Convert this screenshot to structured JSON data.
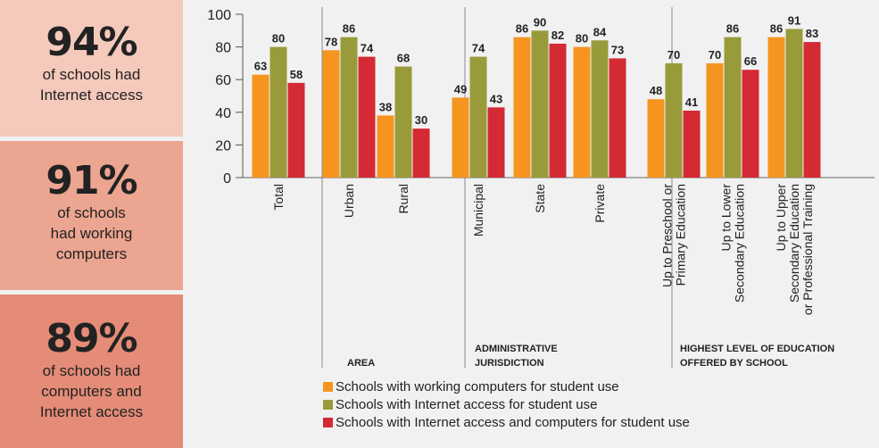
{
  "stats": [
    {
      "value": "94%",
      "lines": [
        "of schools had",
        "Internet access"
      ]
    },
    {
      "value": "91%",
      "lines": [
        "of schools",
        "had working",
        "computers"
      ]
    },
    {
      "value": "89%",
      "lines": [
        "of schools had",
        "computers and",
        "Internet access"
      ]
    }
  ],
  "colors": {
    "working_computers": "#f5951f",
    "internet_access": "#999b3a",
    "both": "#d42a34"
  },
  "chart_data": {
    "type": "bar",
    "ylim": [
      0,
      100
    ],
    "yticks": [
      0,
      20,
      40,
      60,
      80,
      100
    ],
    "grid": false,
    "legend_position": "bottom",
    "categories": [
      "Total",
      "Urban",
      "Rural",
      "Municipal",
      "State",
      "Private",
      "Up to Preschool or Primary Education",
      "Up to Lower Secondary Education",
      "Up to Upper Secondary Education or Professional Training"
    ],
    "category_labels": [
      [
        "Total"
      ],
      [
        "Urban"
      ],
      [
        "Rural"
      ],
      [
        "Municipal"
      ],
      [
        "State"
      ],
      [
        "Private"
      ],
      [
        "Up to Preschool or",
        "Primary Education"
      ],
      [
        "Up to Lower",
        "Secondary Education"
      ],
      [
        "Up to Upper",
        "Secondary Education",
        "or Professional Training"
      ]
    ],
    "groups": [
      {
        "label": "",
        "categories": [
          "Total"
        ]
      },
      {
        "label": "AREA",
        "categories": [
          "Urban",
          "Rural"
        ]
      },
      {
        "label": "ADMINISTRATIVE JURISDICTION",
        "label_lines": [
          "ADMINISTRATIVE",
          "JURISDICTION"
        ],
        "categories": [
          "Municipal",
          "State",
          "Private"
        ]
      },
      {
        "label": "HIGHEST LEVEL OF EDUCATION OFFERED BY SCHOOL",
        "label_lines": [
          "HIGHEST LEVEL OF EDUCATION",
          "OFFERED BY SCHOOL"
        ],
        "categories": [
          "Up to Preschool or Primary Education",
          "Up to Lower Secondary Education",
          "Up to Upper Secondary Education or Professional Training"
        ]
      }
    ],
    "series": [
      {
        "name": "Schools with working computers for student use",
        "values": [
          63,
          78,
          38,
          49,
          86,
          80,
          48,
          70,
          86
        ]
      },
      {
        "name": "Schools with Internet access for student use",
        "values": [
          80,
          86,
          68,
          74,
          90,
          84,
          70,
          86,
          91
        ]
      },
      {
        "name": "Schools with Internet access and computers for student use",
        "values": [
          58,
          74,
          30,
          43,
          82,
          73,
          41,
          66,
          83
        ]
      }
    ]
  }
}
